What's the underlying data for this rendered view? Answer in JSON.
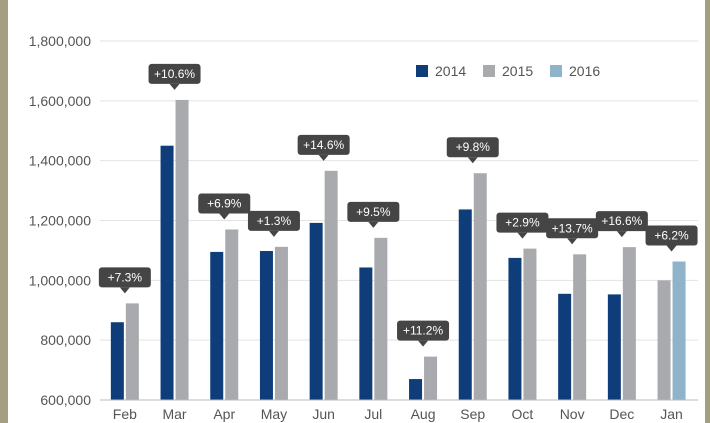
{
  "chart_data": {
    "type": "bar",
    "categories": [
      "Feb",
      "Mar",
      "Apr",
      "May",
      "Jun",
      "Jul",
      "Aug",
      "Sep",
      "Oct",
      "Nov",
      "Dec",
      "Jan"
    ],
    "series": [
      {
        "name": "2014",
        "color": "#0f3d7a",
        "values": [
          860000,
          1450000,
          1095000,
          1098000,
          1192000,
          1043000,
          670000,
          1237000,
          1075000,
          955000,
          953000,
          null
        ]
      },
      {
        "name": "2015",
        "color": "#a8aaad",
        "values": [
          923000,
          1603000,
          1170000,
          1112000,
          1366000,
          1142000,
          745000,
          1358000,
          1106000,
          1087000,
          1111000,
          1000000
        ]
      },
      {
        "name": "2016",
        "color": "#8fb3c8",
        "values": [
          null,
          null,
          null,
          null,
          null,
          null,
          null,
          null,
          null,
          null,
          null,
          1063000
        ]
      }
    ],
    "annotations": [
      "+7.3%",
      "+10.6%",
      "+6.9%",
      "+1.3%",
      "+14.6%",
      "+9.5%",
      "+11.2%",
      "+9.8%",
      "+2.9%",
      "+13.7%",
      "+16.6%",
      "+6.2%"
    ],
    "y_ticks": [
      "600,000",
      "800,000",
      "1,000,000",
      "1,200,000",
      "1,400,000",
      "1,600,000",
      "1,800,000"
    ],
    "ylim": [
      600000,
      1800000
    ],
    "grid": true,
    "legend_position": "top-right",
    "title": "",
    "xlabel": "",
    "ylabel": ""
  }
}
